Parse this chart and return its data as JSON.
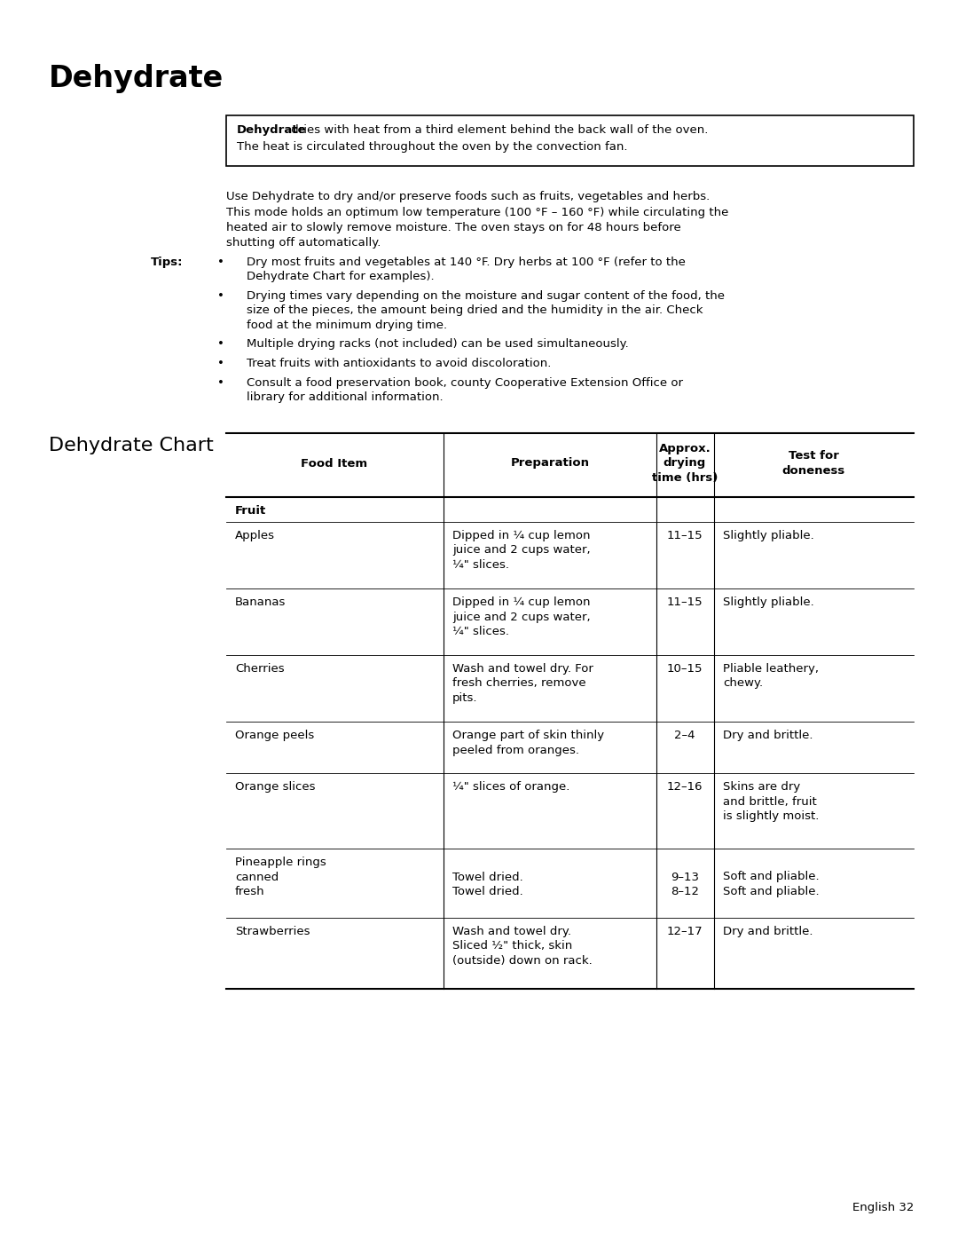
{
  "title": "Dehydrate",
  "box_bold": "Dehydrate",
  "box_rest": " dries with heat from a third element behind the back wall of the oven.\nThe heat is circulated throughout the oven by the convection fan.",
  "para1_lines": [
    "Use Dehydrate to dry and/or preserve foods such as fruits, vegetables and herbs.",
    "This mode holds an optimum low temperature (100 °F – 160 °F) while circulating the",
    "heated air to slowly remove moisture. The oven stays on for 48 hours before",
    "shutting off automatically."
  ],
  "tips_label": "Tips:",
  "tips": [
    [
      "Dry most fruits and vegetables at 140 °F. Dry herbs at 100 °F (refer to the",
      "Dehydrate Chart for examples)."
    ],
    [
      "Drying times vary depending on the moisture and sugar content of the food, the",
      "size of the pieces, the amount being dried and the humidity in the air. Check",
      "food at the minimum drying time."
    ],
    [
      "Multiple drying racks (not included) can be used simultaneously."
    ],
    [
      "Treat fruits with antioxidants to avoid discoloration."
    ],
    [
      "Consult a food preservation book, county Cooperative Extension Office or",
      "library for additional information."
    ]
  ],
  "section_title": "Dehydrate Chart",
  "col_headers": [
    "Food Item",
    "Preparation",
    "Approx.\ndrying\ntime (hrs)",
    "Test for\ndoneness"
  ],
  "row_data": [
    {
      "item": "Fruit",
      "prep": "",
      "drying": "",
      "doneness": "",
      "is_cat": true
    },
    {
      "item": "Apples",
      "prep": "Dipped in ¼ cup lemon\njuice and 2 cups water,\n¼\" slices.",
      "drying": "11–15",
      "doneness": "Slightly pliable.",
      "is_cat": false
    },
    {
      "item": "Bananas",
      "prep": "Dipped in ¼ cup lemon\njuice and 2 cups water,\n¼\" slices.",
      "drying": "11–15",
      "doneness": "Slightly pliable.",
      "is_cat": false
    },
    {
      "item": "Cherries",
      "prep": "Wash and towel dry. For\nfresh cherries, remove\npits.",
      "drying": "10–15",
      "doneness": "Pliable leathery,\nchewy.",
      "is_cat": false
    },
    {
      "item": "Orange peels",
      "prep": "Orange part of skin thinly\npeeled from oranges.",
      "drying": "2–4",
      "doneness": "Dry and brittle.",
      "is_cat": false
    },
    {
      "item": "Orange slices",
      "prep": "¼\" slices of orange.",
      "drying": "12–16",
      "doneness": "Skins are dry\nand brittle, fruit\nis slightly moist.",
      "is_cat": false
    },
    {
      "item": "Pineapple rings\ncanned\nfresh",
      "prep": "\nTowel dried.\nTowel dried.",
      "drying": "\n9–13\n8–12",
      "doneness": "\nSoft and pliable.\nSoft and pliable.",
      "is_cat": false
    },
    {
      "item": "Strawberries",
      "prep": "Wash and towel dry.\nSliced ½\" thick, skin\n(outside) down on rack.",
      "drying": "12–17",
      "doneness": "Dry and brittle.",
      "is_cat": false
    }
  ],
  "footer": "English 32",
  "bg_color": "#ffffff",
  "text_color": "#000000"
}
